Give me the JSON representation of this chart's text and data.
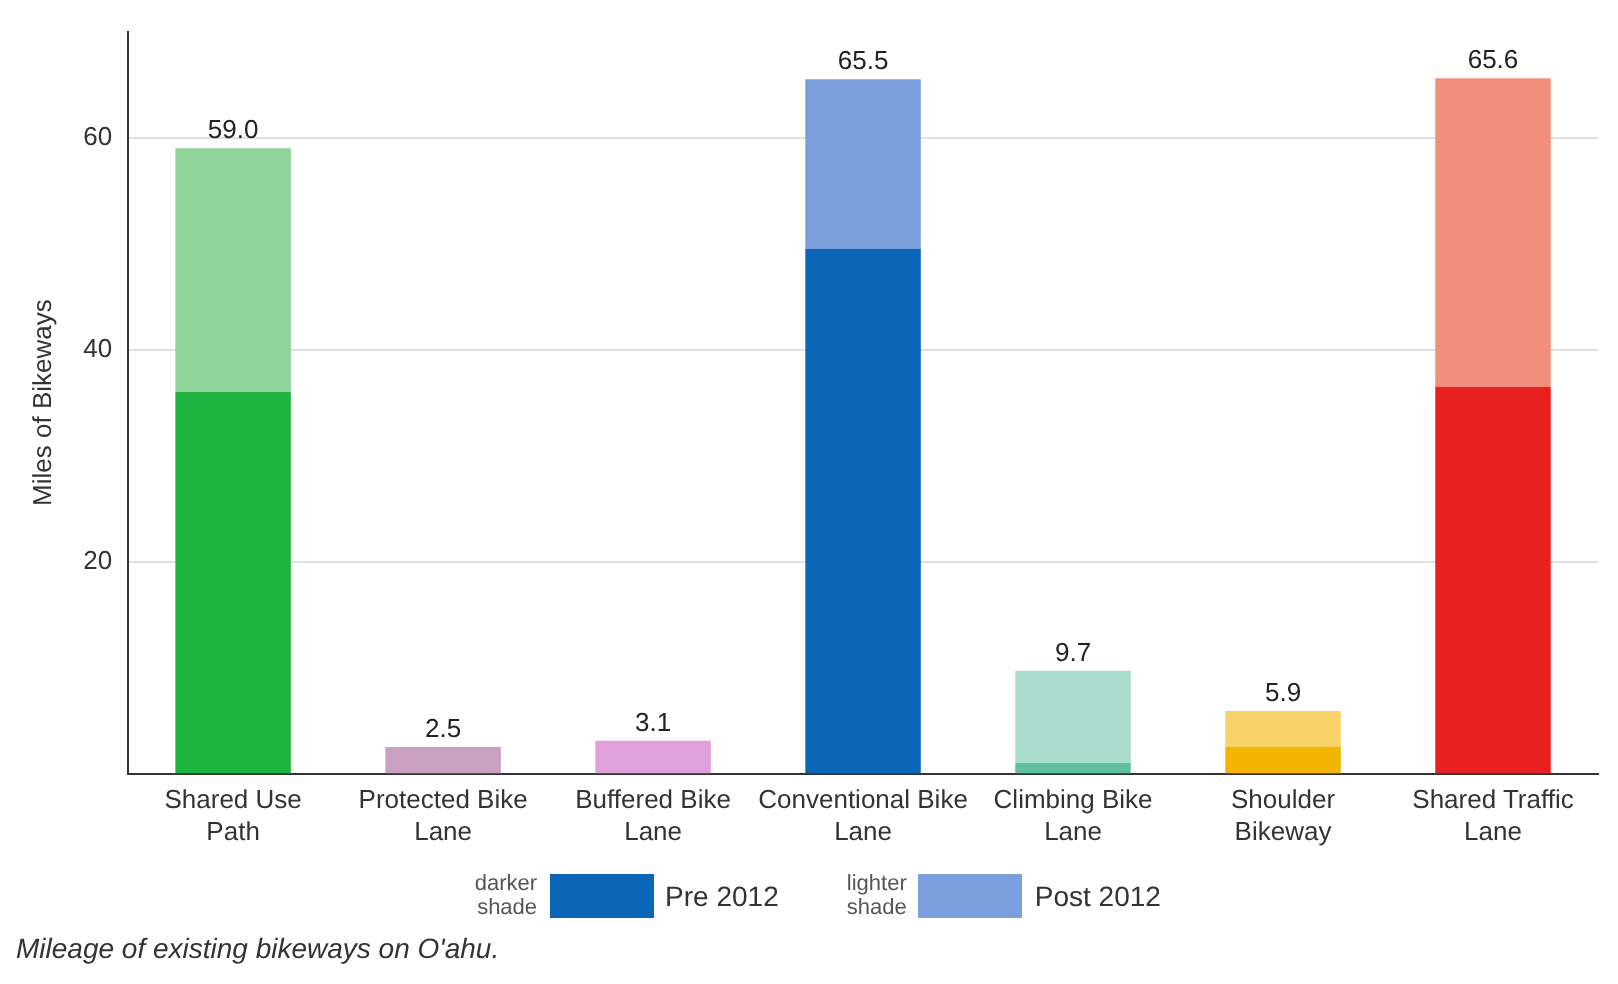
{
  "chart_data": {
    "type": "bar",
    "stacked": true,
    "ylabel": "Miles of Bikeways",
    "categories": [
      "Shared Use Path",
      "Protected Bike Lane",
      "Buffered Bike Lane",
      "Conventional Bike Lane",
      "Climbing Bike Lane",
      "Shoulder Bikeway",
      "Shared Traffic Lane"
    ],
    "series": [
      {
        "name": "Pre 2012",
        "color": "#0a67b8",
        "colors": [
          "#1db33f",
          "#b887ad",
          "#d47fd0",
          "#0a67b8",
          "#5fbf9f",
          "#f2b500",
          "#e82020"
        ],
        "values": [
          36,
          0,
          0,
          49.5,
          1,
          2.5,
          36.5
        ]
      },
      {
        "name": "Post 2012",
        "color": "#7b9fdc",
        "colors": [
          "#8fd49a",
          "#c9a0c0",
          "#e0a0dc",
          "#7b9fdc",
          "#a8dccd",
          "#f9d36a",
          "#f0907a"
        ],
        "values": [
          23,
          2.5,
          3.1,
          16,
          8.7,
          3.4,
          29.1
        ]
      }
    ],
    "totals": [
      "59.0",
      "2.5",
      "3.1",
      "65.5",
      "9.7",
      "5.9",
      "65.6"
    ],
    "ylim": [
      0,
      70
    ],
    "yticks": [
      20,
      40,
      60
    ],
    "grid": "y",
    "legend": "bottom",
    "annotations": [
      "darker shade",
      "lighter shade",
      "Mileage of existing bikeways on O'ahu."
    ]
  }
}
